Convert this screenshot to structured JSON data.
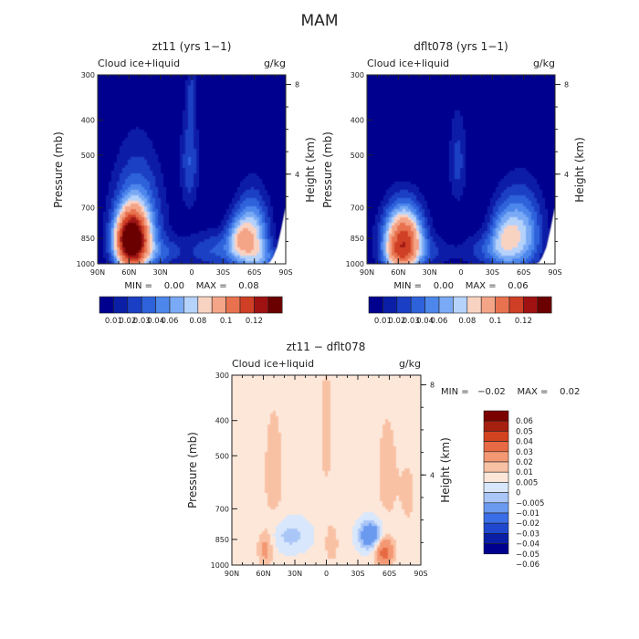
{
  "figure": {
    "title": "MAM"
  },
  "colors": {
    "cbar12": [
      "#00008f",
      "#0a1fa6",
      "#1a3fc4",
      "#2e62db",
      "#4d87ec",
      "#7aaaf5",
      "#b5d2fb",
      "#f9d3c2",
      "#f4a487",
      "#e8724f",
      "#cf3f26",
      "#a01212",
      "#6b0000"
    ],
    "diff": [
      "#00008f",
      "#0a1fa6",
      "#1f48cf",
      "#3a6ee6",
      "#6a9af0",
      "#a9c6f7",
      "#d8e7fb",
      "#fde7d9",
      "#f9c1a4",
      "#f39872",
      "#e76a45",
      "#d2431f",
      "#a62010",
      "#7a0000"
    ]
  },
  "chart_data": [
    {
      "type": "heatmap",
      "title": "zt11 (yrs 1−1)",
      "subtitle_left": "Cloud ice+liquid",
      "subtitle_right": "g/kg",
      "x_ticks": [
        "90N",
        "60N",
        "30N",
        "0",
        "30S",
        "60S",
        "90S"
      ],
      "y_ticks": [
        "300",
        "400",
        "500",
        "700",
        "850",
        "1000"
      ],
      "ylabel": "Pressure (mb)",
      "right_ticks": [
        "8",
        "4"
      ],
      "right_label": "Height (km)",
      "minmax": "MIN =    0.00    MAX =    0.08",
      "colorbar_labels": [
        "0.01",
        "0.02",
        "0.03",
        "0.04",
        "0.06",
        "0.08",
        "0.1",
        "0.12"
      ],
      "contours": {
        "max_level": 10,
        "blobs": [
          {
            "lat": 58,
            "p": 865,
            "peak": 0.085,
            "sx": 10,
            "sy": 100
          },
          {
            "lat": 52,
            "p": 800,
            "peak": 0.03,
            "sx": 16,
            "sy": 200
          },
          {
            "lat": -58,
            "p": 840,
            "peak": 0.035,
            "sx": 11,
            "sy": 140
          },
          {
            "lat": -44,
            "p": 860,
            "peak": 0.02,
            "sx": 8,
            "sy": 90
          },
          {
            "lat": -22,
            "p": 920,
            "peak": 0.015,
            "sx": 18,
            "sy": 80
          },
          {
            "lat": 2,
            "p": 520,
            "peak": 0.015,
            "sx": 6,
            "sy": 120
          },
          {
            "lat": 0,
            "p": 330,
            "peak": 0.008,
            "sx": 3,
            "sy": 40
          },
          {
            "lat": -70,
            "p": 960,
            "peak": 0.012,
            "sx": 10,
            "sy": 60
          },
          {
            "lat": 25,
            "p": 930,
            "peak": 0.01,
            "sx": 15,
            "sy": 60
          }
        ]
      }
    },
    {
      "type": "heatmap",
      "title": "dflt078 (yrs 1−1)",
      "subtitle_left": "Cloud ice+liquid",
      "subtitle_right": "g/kg",
      "x_ticks": [
        "90N",
        "60N",
        "30N",
        "0",
        "30S",
        "60S",
        "90S"
      ],
      "y_ticks": [
        "300",
        "400",
        "500",
        "700",
        "850",
        "1000"
      ],
      "ylabel": "Pressure (mb)",
      "right_ticks": [
        "8",
        "4"
      ],
      "right_label": "Height (km)",
      "minmax": "MIN =    0.00    MAX =    0.06",
      "colorbar_labels": [
        "0.01",
        "0.02",
        "0.03",
        "0.04",
        "0.06",
        "0.08",
        "0.1",
        "0.12"
      ],
      "contours": {
        "max_level": 10,
        "blobs": [
          {
            "lat": 55,
            "p": 860,
            "peak": 0.065,
            "sx": 13,
            "sy": 120
          },
          {
            "lat": -58,
            "p": 830,
            "peak": 0.03,
            "sx": 14,
            "sy": 150
          },
          {
            "lat": -40,
            "p": 850,
            "peak": 0.02,
            "sx": 10,
            "sy": 120
          },
          {
            "lat": -22,
            "p": 920,
            "peak": 0.012,
            "sx": 15,
            "sy": 70
          },
          {
            "lat": 3,
            "p": 520,
            "peak": 0.012,
            "sx": 6,
            "sy": 110
          },
          {
            "lat": 60,
            "p": 960,
            "peak": 0.015,
            "sx": 10,
            "sy": 60
          },
          {
            "lat": 25,
            "p": 930,
            "peak": 0.008,
            "sx": 15,
            "sy": 60
          }
        ]
      }
    },
    {
      "type": "heatmap",
      "title": "zt11 − dflt078",
      "subtitle_left": "Cloud ice+liquid",
      "subtitle_right": "g/kg",
      "x_ticks": [
        "90N",
        "60N",
        "30N",
        "0",
        "30S",
        "60S",
        "90S"
      ],
      "y_ticks": [
        "300",
        "400",
        "500",
        "700",
        "850",
        "1000"
      ],
      "ylabel": "Pressure (mb)",
      "right_ticks": [
        "8",
        "4"
      ],
      "right_label": "Height (km)",
      "minmax": "MIN =   −0.02    MAX =    0.02",
      "colorbar_labels": [
        "0.06",
        "0.05",
        "0.04",
        "0.03",
        "0.02",
        "0.01",
        "0.005",
        "0",
        "−0.005",
        "−0.01",
        "−0.02",
        "−0.03",
        "−0.04",
        "−0.05",
        "−0.06"
      ],
      "contours": {
        "levels": [
          -0.06,
          -0.05,
          -0.04,
          -0.03,
          -0.02,
          -0.01,
          -0.005,
          0,
          0.005,
          0.01,
          0.02,
          0.03,
          0.04,
          0.05,
          0.06
        ],
        "base": 0.002,
        "blobs": [
          {
            "lat": 58,
            "p": 900,
            "peak": 0.011,
            "sx": 5,
            "sy": 70
          },
          {
            "lat": -5,
            "p": 870,
            "peak": 0.008,
            "sx": 4,
            "sy": 70
          },
          {
            "lat": -55,
            "p": 920,
            "peak": 0.024,
            "sx": 6,
            "sy": 55
          },
          {
            "lat": -42,
            "p": 830,
            "peak": -0.022,
            "sx": 8,
            "sy": 55
          },
          {
            "lat": 35,
            "p": 830,
            "peak": -0.009,
            "sx": 14,
            "sy": 65
          },
          {
            "lat": 50,
            "p": 560,
            "peak": 0.005,
            "sx": 8,
            "sy": 180
          },
          {
            "lat": -58,
            "p": 560,
            "peak": 0.005,
            "sx": 8,
            "sy": 160
          },
          {
            "lat": 0,
            "p": 430,
            "peak": 0.006,
            "sx": 4,
            "sy": 120
          },
          {
            "lat": -78,
            "p": 640,
            "peak": 0.004,
            "sx": 6,
            "sy": 120
          }
        ]
      }
    }
  ]
}
